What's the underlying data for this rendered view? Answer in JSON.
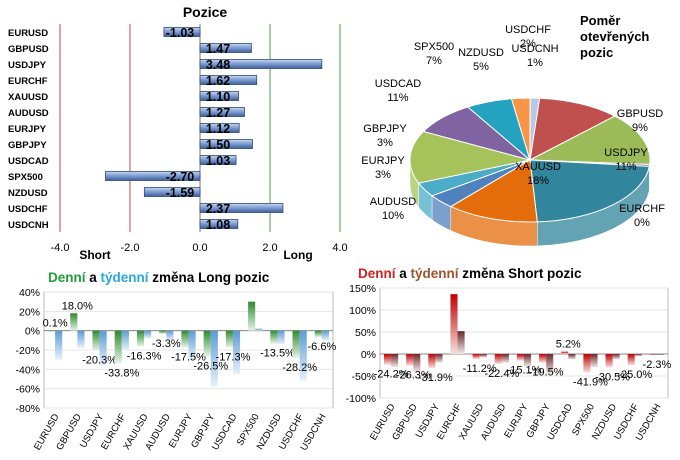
{
  "chart_data": [
    {
      "type": "bar",
      "orientation": "horizontal",
      "title": "Pozice",
      "categories": [
        "EURUSD",
        "GBPUSD",
        "USDJPY",
        "EURCHF",
        "XAUUSD",
        "AUDUSD",
        "EURJPY",
        "GBPJPY",
        "USDCAD",
        "SPX500",
        "NZDUSD",
        "USDCHF",
        "USDCNH"
      ],
      "values": [
        -1.03,
        1.47,
        3.48,
        1.62,
        1.1,
        1.27,
        1.12,
        1.5,
        1.03,
        -2.7,
        -1.59,
        2.37,
        1.08
      ],
      "xlim": [
        -4.0,
        4.0
      ],
      "xticks": [
        "-4.0",
        "-2.0",
        "0.0",
        "2.0",
        "4.0"
      ],
      "short_label": "Short",
      "long_label": "Long",
      "bar_color": "#5e84c4"
    },
    {
      "type": "pie",
      "title_lines": [
        "Poměr",
        "otevřených",
        "pozic"
      ],
      "slices": [
        {
          "label": "GBPUSD",
          "value": 9,
          "color": "#c0504d"
        },
        {
          "label": "USDJPY",
          "value": 11,
          "color": "#9bbb59"
        },
        {
          "label": "EURCHF",
          "value": 0,
          "color": "#8064a2"
        },
        {
          "label": "XAUUSD",
          "value": 18,
          "color": "#31859c"
        },
        {
          "label": "AUDUSD",
          "value": 10,
          "color": "#e46c0a"
        },
        {
          "label": "EURJPY",
          "value": 3,
          "color": "#4f81bd"
        },
        {
          "label": "GBPJPY",
          "value": 3,
          "color": "#4bacc6"
        },
        {
          "label": "USDCAD",
          "value": 11,
          "color": "#a6c35b"
        },
        {
          "label": "SPX500",
          "value": 7,
          "color": "#8064a2"
        },
        {
          "label": "NZDUSD",
          "value": 5,
          "color": "#23a3c0"
        },
        {
          "label": "USDCHF",
          "value": 2,
          "color": "#f79646"
        },
        {
          "label": "USDCNH",
          "value": 1,
          "color": "#b7c9e8"
        }
      ]
    },
    {
      "type": "bar",
      "title_parts": [
        {
          "text": "Denní",
          "color": "#1f9e3a"
        },
        {
          "text": " a ",
          "color": "#000000"
        },
        {
          "text": "týdenní",
          "color": "#29a8dd"
        },
        {
          "text": " změna Long pozic",
          "color": "#000000"
        }
      ],
      "categories": [
        "EURUSD",
        "GBPUSD",
        "USDJPY",
        "EURCHF",
        "XAUUSD",
        "AUDUSD",
        "EURJPY",
        "GBPJPY",
        "USDCAD",
        "SPX500",
        "NZDUSD",
        "USDCHF",
        "USDCNH"
      ],
      "series": [
        {
          "name": "Denní",
          "values": [
            0.1,
            18.0,
            -20.3,
            -33.8,
            -16.3,
            -3.3,
            -17.5,
            -26.5,
            -17.3,
            30,
            -13.5,
            -28.2,
            -6.6
          ]
        },
        {
          "name": "Týdenní",
          "values": [
            -30,
            -18,
            -36,
            -20,
            -8,
            -10,
            -30,
            -58,
            -45,
            2,
            -14,
            -52,
            -10
          ]
        }
      ],
      "data_labels": [
        "0.1%",
        "18.0%",
        "-20.3%",
        "-33.8%",
        "-16.3%",
        "-3.3%",
        "-17.5%",
        "-26.5%",
        "-17.3%",
        "",
        "-13.5%",
        "-28.2%",
        "-6.6%"
      ],
      "ylim": [
        -80,
        40
      ],
      "yticks": [
        "40%",
        "20%",
        "0%",
        "-20%",
        "-40%",
        "-60%",
        "-80%"
      ],
      "colors": {
        "daily": "#2e8b2e",
        "weekly": "#5b9bd5"
      }
    },
    {
      "type": "bar",
      "title_parts": [
        {
          "text": "Denní",
          "color": "#d81e1e"
        },
        {
          "text": " a ",
          "color": "#000000"
        },
        {
          "text": "týdenní",
          "color": "#a0522d"
        },
        {
          "text": " změna Short pozic",
          "color": "#000000"
        }
      ],
      "categories": [
        "EURUSD",
        "GBPUSD",
        "USDJPY",
        "EURCHF",
        "XAUUSD",
        "AUDUSD",
        "EURJPY",
        "GBPJPY",
        "USDCAD",
        "SPX500",
        "NZDUSD",
        "USDCHF",
        "USDCNH"
      ],
      "series": [
        {
          "name": "Denní",
          "values": [
            -24.2,
            -26.3,
            -31.9,
            136,
            -11.2,
            -22.4,
            -15.1,
            -19.5,
            5.2,
            -41.9,
            -30.5,
            -25.0,
            -2.3
          ]
        },
        {
          "name": "Týdenní",
          "values": [
            -30,
            -40,
            -20,
            52,
            -8,
            -20,
            -28,
            -45,
            -12,
            -30,
            -12,
            -5,
            0
          ]
        }
      ],
      "data_labels": [
        "-24.2%",
        "-26.3%",
        "-31.9%",
        "",
        "-11.2%",
        "-22.4%",
        "-15.1%",
        "-19.5%",
        "5.2%",
        "-41.9%",
        "-30.5%",
        "-25.0%",
        "-2.3%"
      ],
      "ylim": [
        -100,
        150
      ],
      "yticks": [
        "150%",
        "100%",
        "50%",
        "0%",
        "-50%",
        "-100%"
      ],
      "colors": {
        "daily": "#c00000",
        "weekly": "#6b2a2a"
      }
    }
  ]
}
